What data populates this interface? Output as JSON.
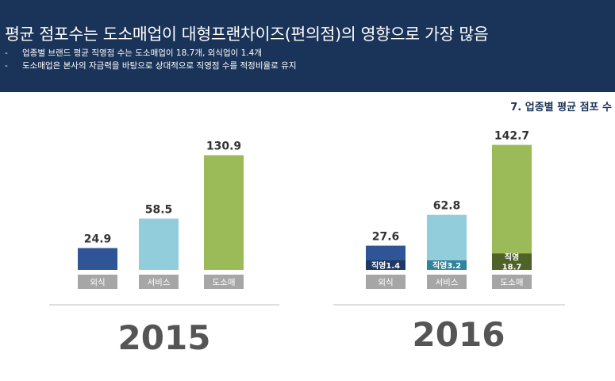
{
  "header": {
    "title": "평균 점포수는 도소매업이 대형프랜차이즈(편의점)의 영향으로 가장 많음",
    "bullets": [
      "업종별 브랜드 평균 직영점 수는 도소매업이 18.7개, 외식업이 1.4개",
      "도소매업은 본사의 자금력을 바탕으로 상대적으로 직영점 수를 적정비율로 유지"
    ],
    "bullet_marker": "-"
  },
  "section_title": "7. 업종별 평균 점포 수",
  "colors": {
    "header_bg": "#1a3358",
    "food": "#2f5597",
    "service": "#92cddc",
    "retail": "#9bbb59",
    "food_direct": "#1f3864",
    "service_direct": "#31849b",
    "retail_direct": "#4f6228",
    "category_label_bg": "#a6a6a6",
    "year_text": "#555555"
  },
  "chart_data": [
    {
      "type": "bar",
      "year": "2015",
      "categories": [
        "외식",
        "서비스",
        "도소매"
      ],
      "values": [
        24.9,
        58.5,
        130.9
      ],
      "value_labels": [
        "24.9",
        "58.5",
        "130.9"
      ],
      "ylim": [
        0,
        150
      ],
      "grid": false
    },
    {
      "type": "bar",
      "stacked": true,
      "year": "2016",
      "categories": [
        "외식",
        "서비스",
        "도소매"
      ],
      "values": [
        27.6,
        62.8,
        142.7
      ],
      "value_labels": [
        "27.6",
        "62.8",
        "142.7"
      ],
      "direct_values": [
        1.4,
        3.2,
        18.7
      ],
      "direct_labels": [
        [
          "직영1.4"
        ],
        [
          "직영3.2"
        ],
        [
          "직영",
          "18.7"
        ]
      ],
      "ylim": [
        0,
        150
      ],
      "grid": false
    }
  ]
}
